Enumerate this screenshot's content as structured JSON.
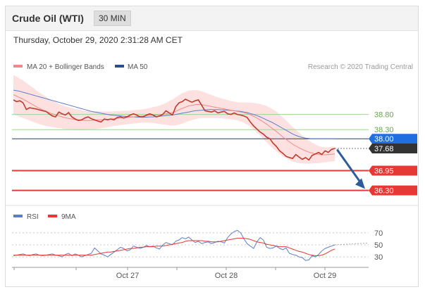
{
  "header": {
    "title": "Crude Oil (WTI)",
    "timeframe": "30 MIN",
    "timestamp": "Thursday, October 29, 2020 2:31:28 AM CET"
  },
  "legend": {
    "ma20_label": "MA 20 + Bollinger Bands",
    "ma50_label": "MA 50",
    "credit": "Research © 2020 Trading Central",
    "rsi_label": "RSI",
    "ma9_label": "9MA"
  },
  "colors": {
    "price": "#c0392b",
    "ma20": "#f08a8a",
    "bollinger_fill": "#fde0e0",
    "ma50": "#5b7fc7",
    "green_level": "#9ed68f",
    "green_text": "#62a843",
    "red_level": "#e53935",
    "blue_level": "#2a3f6e",
    "current_badge": "#333333",
    "blue_badge": "#1f6fe0",
    "arrow": "#2d5c9c",
    "rsi": "#5b7fc7",
    "rsi_ma9": "#e53935"
  },
  "chart_data": [
    {
      "type": "line",
      "panel": "price",
      "x_ticks": [
        "Oct 27",
        "Oct 28",
        "Oct 29"
      ],
      "ylim": [
        35.85,
        40.25
      ],
      "n_points": 100,
      "series": [
        {
          "name": "price",
          "values": [
            39.28,
            39.22,
            39.25,
            39.18,
            38.96,
            39.02,
            39.0,
            38.98,
            38.95,
            38.92,
            38.9,
            38.82,
            38.75,
            38.72,
            38.88,
            38.82,
            38.78,
            38.86,
            38.72,
            38.65,
            38.6,
            38.62,
            38.68,
            38.72,
            38.66,
            38.62,
            38.58,
            38.55,
            38.65,
            38.62,
            38.65,
            38.62,
            38.7,
            38.72,
            38.68,
            38.72,
            38.78,
            38.82,
            38.78,
            38.72,
            38.72,
            38.78,
            38.82,
            38.78,
            38.72,
            38.75,
            38.8,
            38.92,
            38.85,
            38.78,
            39.05,
            39.18,
            39.22,
            39.3,
            39.25,
            39.2,
            39.25,
            39.28,
            39.1,
            38.92,
            38.9,
            38.88,
            38.92,
            38.85,
            38.88,
            38.9,
            38.82,
            38.8,
            38.85,
            38.8,
            38.78,
            38.75,
            38.7,
            38.55,
            38.42,
            38.32,
            38.22,
            38.15,
            38.05,
            38.0,
            37.85,
            37.75,
            37.6,
            37.52,
            37.42,
            37.38,
            37.35,
            37.48,
            37.4,
            37.32,
            37.38,
            37.3,
            37.45,
            37.5,
            37.55,
            37.48,
            37.6,
            37.55,
            37.65,
            37.68
          ]
        },
        {
          "name": "MA 20",
          "values": [
            39.45,
            39.4,
            39.35,
            39.3,
            39.24,
            39.18,
            39.12,
            39.06,
            39.0,
            38.95,
            38.9,
            38.86,
            38.82,
            38.78,
            38.75,
            38.72,
            38.69,
            38.67,
            38.65,
            38.63,
            38.62,
            38.61,
            38.6,
            38.6,
            38.6,
            38.61,
            38.62,
            38.62,
            38.63,
            38.64,
            38.65,
            38.66,
            38.67,
            38.68,
            38.69,
            38.7,
            38.71,
            38.72,
            38.73,
            38.74,
            38.75,
            38.76,
            38.77,
            38.78,
            38.78,
            38.79,
            38.8,
            38.82,
            38.84,
            38.86,
            38.9,
            38.95,
            39.0,
            39.04,
            39.08,
            39.1,
            39.12,
            39.13,
            39.12,
            39.1,
            39.08,
            39.06,
            39.04,
            39.02,
            39.0,
            38.98,
            38.96,
            38.94,
            38.92,
            38.9,
            38.88,
            38.86,
            38.83,
            38.79,
            38.74,
            38.68,
            38.62,
            38.55,
            38.48,
            38.4,
            38.32,
            38.24,
            38.15,
            38.06,
            37.98,
            37.9,
            37.82,
            37.76,
            37.7,
            37.65,
            37.6,
            37.56,
            37.53,
            37.5,
            37.48,
            37.47,
            37.47,
            37.48,
            37.49,
            37.5
          ]
        },
        {
          "name": "MA 50",
          "values": [
            39.6,
            39.58,
            39.56,
            39.53,
            39.5,
            39.47,
            39.44,
            39.41,
            39.38,
            39.35,
            39.32,
            39.29,
            39.26,
            39.23,
            39.2,
            39.17,
            39.14,
            39.11,
            39.08,
            39.05,
            39.02,
            38.99,
            38.96,
            38.93,
            38.9,
            38.88,
            38.86,
            38.84,
            38.82,
            38.8,
            38.78,
            38.77,
            38.76,
            38.75,
            38.74,
            38.73,
            38.72,
            38.72,
            38.71,
            38.71,
            38.71,
            38.71,
            38.72,
            38.72,
            38.73,
            38.74,
            38.75,
            38.76,
            38.77,
            38.78,
            38.8,
            38.82,
            38.84,
            38.86,
            38.88,
            38.9,
            38.92,
            38.93,
            38.94,
            38.95,
            38.96,
            38.96,
            38.96,
            38.96,
            38.95,
            38.95,
            38.94,
            38.93,
            38.92,
            38.91,
            38.9,
            38.88,
            38.86,
            38.83,
            38.8,
            38.76,
            38.72,
            38.67,
            38.62,
            38.57,
            38.52,
            38.46,
            38.4,
            38.34,
            38.28,
            38.22,
            38.16,
            38.11,
            38.07,
            38.04,
            38.02,
            38.01,
            38.0,
            38.0,
            38.0,
            38.0,
            38.0,
            38.0,
            38.0,
            38.0
          ]
        }
      ],
      "bollinger_band_halfwidth": [
        0.65,
        0.64,
        0.63,
        0.62,
        0.6,
        0.58,
        0.56,
        0.54,
        0.52,
        0.5,
        0.48,
        0.46,
        0.44,
        0.42,
        0.4,
        0.39,
        0.38,
        0.37,
        0.36,
        0.35,
        0.34,
        0.33,
        0.32,
        0.31,
        0.3,
        0.3,
        0.29,
        0.28,
        0.27,
        0.26,
        0.25,
        0.24,
        0.24,
        0.23,
        0.23,
        0.22,
        0.22,
        0.22,
        0.22,
        0.22,
        0.22,
        0.23,
        0.24,
        0.26,
        0.28,
        0.3,
        0.33,
        0.36,
        0.4,
        0.43,
        0.46,
        0.48,
        0.5,
        0.5,
        0.5,
        0.49,
        0.48,
        0.46,
        0.44,
        0.42,
        0.4,
        0.38,
        0.36,
        0.34,
        0.33,
        0.32,
        0.31,
        0.3,
        0.3,
        0.3,
        0.31,
        0.33,
        0.36,
        0.4,
        0.44,
        0.48,
        0.52,
        0.56,
        0.6,
        0.62,
        0.64,
        0.65,
        0.65,
        0.64,
        0.62,
        0.6,
        0.57,
        0.54,
        0.5,
        0.46,
        0.42,
        0.38,
        0.34,
        0.31,
        0.28,
        0.26,
        0.25,
        0.24,
        0.24,
        0.24
      ],
      "levels": [
        {
          "value": 38.8,
          "label": "38.80",
          "style": "green"
        },
        {
          "value": 38.3,
          "label": "38.30",
          "style": "green"
        },
        {
          "value": 38.0,
          "label": "38.00",
          "style": "blue"
        },
        {
          "value": 37.68,
          "label": "37.68",
          "style": "current"
        },
        {
          "value": 36.95,
          "label": "36.95",
          "style": "red"
        },
        {
          "value": 36.3,
          "label": "36.30",
          "style": "red"
        }
      ],
      "forecast_arrow": {
        "from_index": 99,
        "from_value": 37.62,
        "to_value": 36.35
      }
    },
    {
      "type": "line",
      "panel": "rsi",
      "ylim": [
        15,
        85
      ],
      "y_ticks": [
        70,
        50,
        30
      ],
      "n_points": 100,
      "series": [
        {
          "name": "RSI",
          "values": [
            32,
            33,
            34,
            35,
            33,
            32,
            34,
            35,
            33,
            32,
            33,
            34,
            35,
            33,
            32,
            30,
            34,
            36,
            32,
            35,
            33,
            30,
            32,
            34,
            36,
            45,
            40,
            35,
            33,
            30,
            34,
            38,
            42,
            46,
            44,
            40,
            42,
            48,
            46,
            44,
            46,
            49,
            47,
            48,
            45,
            43,
            50,
            54,
            52,
            50,
            56,
            58,
            62,
            60,
            63,
            58,
            54,
            56,
            52,
            54,
            55,
            52,
            54,
            56,
            55,
            53,
            62,
            68,
            72,
            74,
            70,
            60,
            52,
            48,
            44,
            55,
            62,
            58,
            46,
            44,
            45,
            48,
            44,
            42,
            45,
            36,
            34,
            33,
            30,
            29,
            24,
            25,
            32,
            30,
            34,
            40,
            44,
            46,
            48,
            50
          ]
        },
        {
          "name": "9MA",
          "values": [
            33,
            33,
            33,
            33,
            33,
            33,
            33,
            33,
            33,
            33,
            33,
            33,
            33,
            33,
            33,
            33,
            33,
            33,
            33,
            33,
            33,
            33,
            33,
            33,
            33,
            34,
            35,
            36,
            37,
            38,
            38,
            39,
            40,
            41,
            42,
            43,
            44,
            44,
            45,
            46,
            46,
            47,
            47,
            47,
            48,
            48,
            48,
            49,
            50,
            51,
            52,
            53,
            54,
            56,
            57,
            57,
            57,
            57,
            57,
            56,
            56,
            55,
            55,
            55,
            56,
            57,
            58,
            59,
            60,
            61,
            61,
            61,
            60,
            59,
            57,
            55,
            54,
            53,
            51,
            50,
            49,
            48,
            47,
            47,
            47,
            45,
            43,
            41,
            39,
            38,
            36,
            34,
            33,
            32,
            32,
            33,
            35,
            38,
            41,
            43
          ]
        }
      ]
    }
  ]
}
